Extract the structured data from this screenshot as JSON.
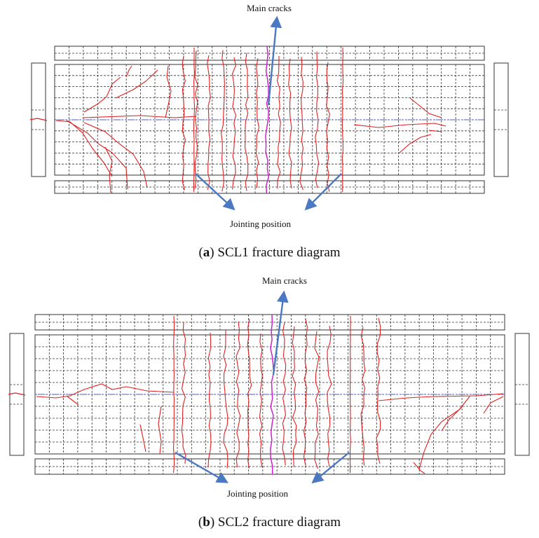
{
  "panels": [
    {
      "id": "a",
      "main_cracks_label": "Main cracks",
      "jointing_label": "Jointing position",
      "caption_letter": "a",
      "caption_text": "SCL1 fracture diagram"
    },
    {
      "id": "b",
      "main_cracks_label": "Main cracks",
      "jointing_label": "Jointing position",
      "caption_letter": "b",
      "caption_text": "SCL2 fracture diagram"
    }
  ],
  "colors": {
    "crack": "#e02020",
    "main_crack": "#cc22cc",
    "axis_line": "#4455dd",
    "arrow": "#4a78c2",
    "outline": "#333333",
    "grid": "#333333"
  }
}
